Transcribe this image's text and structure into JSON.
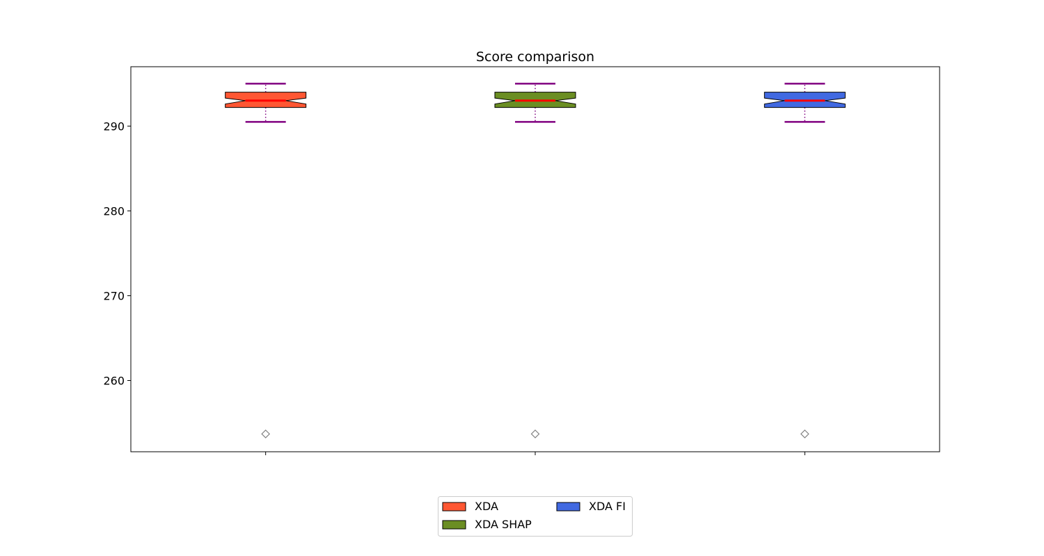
{
  "chart_data": {
    "type": "box",
    "title": "Score comparison",
    "xlabel": "",
    "ylabel": "",
    "ylim": [
      251.6,
      297.0
    ],
    "yticks": [
      260,
      270,
      280,
      290
    ],
    "notched": true,
    "median_color": "#ff0000",
    "whisker_color": "#800080",
    "outlier_marker": "diamond",
    "outlier_color": "#808080",
    "grid": false,
    "legend": {
      "placement": "bottom-center",
      "columns": 2
    },
    "series": [
      {
        "name": "XDA",
        "color": "#ff5733",
        "whisker_low": 290.5,
        "q1": 292.2,
        "median": 293.0,
        "q3": 294.0,
        "whisker_high": 295.0,
        "notch_low": 292.6,
        "notch_high": 293.3,
        "outliers": [
          253.7
        ]
      },
      {
        "name": "XDA SHAP",
        "color": "#6b8e23",
        "whisker_low": 290.5,
        "q1": 292.2,
        "median": 293.0,
        "q3": 294.0,
        "whisker_high": 295.0,
        "notch_low": 292.6,
        "notch_high": 293.3,
        "outliers": [
          253.7
        ]
      },
      {
        "name": "XDA FI",
        "color": "#4169e1",
        "whisker_low": 290.5,
        "q1": 292.2,
        "median": 293.0,
        "q3": 294.0,
        "whisker_high": 295.0,
        "notch_low": 292.6,
        "notch_high": 293.3,
        "outliers": [
          253.7
        ]
      }
    ]
  }
}
